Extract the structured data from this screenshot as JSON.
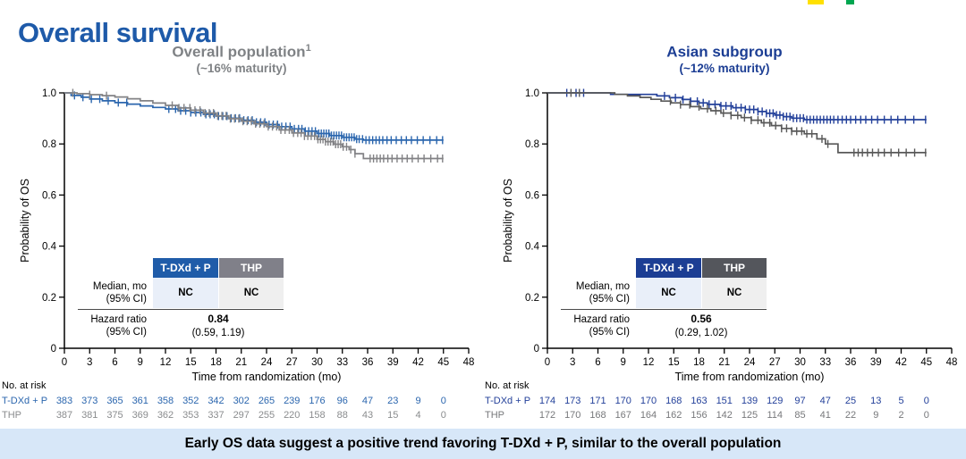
{
  "title": "Overall survival",
  "colors": {
    "main_title": "#1E5AA9",
    "banner_bg": "#D7E7F8",
    "logo_yellow": "#FFE000",
    "logo_green": "#00A650"
  },
  "banner": {
    "text": "Early OS data suggest a positive trend favoring T-DXd + P, similar to the overall population"
  },
  "chart_data": [
    {
      "type": "line",
      "subtype": "kaplan-meier-step",
      "title": "Overall population",
      "title_sup": "1",
      "subtitle": "(~16% maturity)",
      "title_color": "#7F8285",
      "xlabel": "Time from randomization (mo)",
      "ylabel": "Probability of OS",
      "xlim": [
        0,
        48
      ],
      "ylim": [
        0,
        1.0
      ],
      "xticks": [
        0,
        3,
        6,
        9,
        12,
        15,
        18,
        21,
        24,
        27,
        30,
        33,
        36,
        39,
        42,
        45,
        48
      ],
      "yticks": [
        0,
        0.2,
        0.4,
        0.6,
        0.8,
        1.0
      ],
      "grid": false,
      "series": [
        {
          "name": "T-DXd + P",
          "color": "#2B66AE",
          "steps": [
            [
              0,
              1.0
            ],
            [
              0.8,
              0.99
            ],
            [
              2,
              0.983
            ],
            [
              3,
              0.976
            ],
            [
              4.5,
              0.969
            ],
            [
              6,
              0.962
            ],
            [
              7.5,
              0.956
            ],
            [
              9,
              0.949
            ],
            [
              10.5,
              0.943
            ],
            [
              12,
              0.937
            ],
            [
              13.5,
              0.93
            ],
            [
              15,
              0.923
            ],
            [
              16.5,
              0.916
            ],
            [
              18,
              0.909
            ],
            [
              19.5,
              0.901
            ],
            [
              21,
              0.893
            ],
            [
              22.5,
              0.885
            ],
            [
              24,
              0.876
            ],
            [
              25.5,
              0.868
            ],
            [
              27,
              0.859
            ],
            [
              28.5,
              0.85
            ],
            [
              30,
              0.841
            ],
            [
              31.5,
              0.833
            ],
            [
              33,
              0.826
            ],
            [
              34.5,
              0.819
            ],
            [
              35.5,
              0.815
            ],
            [
              45,
              0.815
            ]
          ],
          "censor_times": [
            1.2,
            2.2,
            3.2,
            4.2,
            5.2,
            6.4,
            7.4,
            12.4,
            13.2,
            13.8,
            14.4,
            15.0,
            15.6,
            16.2,
            16.8,
            17.3,
            17.8,
            18.3,
            18.8,
            19.3,
            19.8,
            20.3,
            20.8,
            21.3,
            21.8,
            22.3,
            22.8,
            23.3,
            23.8,
            24.3,
            24.8,
            25.3,
            25.8,
            26.3,
            26.8,
            27.3,
            27.8,
            28.2,
            28.6,
            29.0,
            29.4,
            29.8,
            30.2,
            30.5,
            30.8,
            31.1,
            31.4,
            31.7,
            32.0,
            32.3,
            32.6,
            32.9,
            33.2,
            33.5,
            33.8,
            34.1,
            34.4,
            34.7,
            35.0,
            35.4,
            35.8,
            36.2,
            36.6,
            37.0,
            37.4,
            37.8,
            38.3,
            38.8,
            39.4,
            40.0,
            40.6,
            41.2,
            41.9,
            42.6,
            43.4,
            44.2,
            44.9
          ]
        },
        {
          "name": "THP",
          "color": "#828285",
          "steps": [
            [
              0,
              1.0
            ],
            [
              1.5,
              0.997
            ],
            [
              3,
              0.993
            ],
            [
              4.5,
              0.989
            ],
            [
              6,
              0.984
            ],
            [
              7.5,
              0.977
            ],
            [
              9,
              0.969
            ],
            [
              10.5,
              0.96
            ],
            [
              12,
              0.951
            ],
            [
              13.5,
              0.941
            ],
            [
              15,
              0.932
            ],
            [
              16.5,
              0.921
            ],
            [
              18,
              0.91
            ],
            [
              19.5,
              0.899
            ],
            [
              21,
              0.889
            ],
            [
              22.5,
              0.879
            ],
            [
              24,
              0.868
            ],
            [
              25.5,
              0.855
            ],
            [
              27,
              0.843
            ],
            [
              28.5,
              0.831
            ],
            [
              30,
              0.818
            ],
            [
              31,
              0.809
            ],
            [
              32,
              0.799
            ],
            [
              33,
              0.789
            ],
            [
              33.8,
              0.778
            ],
            [
              34.5,
              0.762
            ],
            [
              35.5,
              0.743
            ],
            [
              45,
              0.743
            ]
          ],
          "censor_times": [
            1.0,
            3.0,
            5.0,
            12.8,
            13.6,
            14.2,
            14.9,
            15.5,
            16.1,
            16.7,
            17.2,
            17.7,
            18.2,
            18.7,
            19.2,
            19.7,
            20.2,
            20.7,
            21.2,
            21.7,
            22.2,
            22.7,
            23.2,
            23.7,
            24.2,
            24.7,
            25.2,
            25.7,
            26.2,
            26.7,
            27.2,
            27.7,
            28.1,
            28.5,
            28.9,
            29.3,
            29.7,
            30.1,
            30.4,
            30.7,
            31.0,
            31.3,
            31.6,
            31.9,
            32.2,
            32.5,
            32.8,
            33.1,
            33.5,
            34.0,
            34.5,
            36.3,
            36.7,
            37.1,
            37.5,
            37.9,
            38.4,
            38.9,
            39.5,
            40.1,
            40.7,
            41.3,
            42.0,
            42.7,
            43.5,
            44.3,
            44.9
          ]
        }
      ],
      "stats": {
        "row1_label1": "Median, mo",
        "row1_label2": "(95% CI)",
        "row1_arm1": "NC",
        "row1_arm2": "NC",
        "row2_label1": "Hazard ratio",
        "row2_label2": "(95% CI)",
        "hr": "0.84",
        "hr_ci": "(0.59, 1.19)",
        "arm1_header_bg": "#1F5CA9",
        "arm2_header_bg": "#808089",
        "arm1_cell_bg": "#E9EFF9",
        "arm2_cell_bg": "#EFEFEF"
      },
      "at_risk": {
        "label": "No. at risk",
        "rows": [
          {
            "name": "T-DXd + P",
            "color": "#2B66AE",
            "values": [
              383,
              373,
              365,
              361,
              358,
              352,
              342,
              302,
              265,
              239,
              176,
              96,
              47,
              23,
              9,
              0
            ]
          },
          {
            "name": "THP",
            "color": "#8A8C8E",
            "values": [
              387,
              381,
              375,
              369,
              362,
              353,
              337,
              297,
              255,
              220,
              158,
              88,
              43,
              15,
              4,
              0
            ]
          }
        ]
      }
    },
    {
      "type": "line",
      "subtype": "kaplan-meier-step",
      "title": "Asian subgroup",
      "title_sup": "",
      "subtitle": "(~12% maturity)",
      "title_color": "#1C3E94",
      "xlabel": "Time from randomization (mo)",
      "ylabel": "Probability of OS",
      "xlim": [
        0,
        48
      ],
      "ylim": [
        0,
        1.0
      ],
      "xticks": [
        0,
        3,
        6,
        9,
        12,
        15,
        18,
        21,
        24,
        27,
        30,
        33,
        36,
        39,
        42,
        45,
        48
      ],
      "yticks": [
        0,
        0.2,
        0.4,
        0.6,
        0.8,
        1.0
      ],
      "grid": false,
      "series": [
        {
          "name": "T-DXd + P",
          "color": "#23409A",
          "steps": [
            [
              0,
              1.0
            ],
            [
              7.5,
              0.994
            ],
            [
              13,
              0.988
            ],
            [
              14.5,
              0.981
            ],
            [
              16,
              0.974
            ],
            [
              17,
              0.967
            ],
            [
              18,
              0.961
            ],
            [
              19,
              0.955
            ],
            [
              20.5,
              0.949
            ],
            [
              22,
              0.942
            ],
            [
              23.5,
              0.935
            ],
            [
              25,
              0.927
            ],
            [
              26,
              0.92
            ],
            [
              27,
              0.913
            ],
            [
              28,
              0.907
            ],
            [
              29,
              0.901
            ],
            [
              30.5,
              0.895
            ],
            [
              45,
              0.895
            ]
          ],
          "censor_times": [
            2.3,
            3.4,
            4.3,
            13.9,
            15.2,
            16.1,
            17.0,
            17.8,
            18.5,
            19.2,
            19.9,
            20.6,
            21.2,
            21.8,
            22.4,
            23.0,
            23.5,
            24.0,
            24.5,
            25.0,
            25.5,
            26.0,
            26.4,
            26.8,
            27.2,
            27.6,
            28.0,
            28.4,
            28.8,
            29.2,
            29.6,
            30.0,
            30.4,
            30.8,
            31.2,
            31.6,
            32.0,
            32.4,
            32.8,
            33.2,
            33.6,
            34.0,
            34.5,
            35.0,
            35.5,
            36.0,
            36.6,
            37.2,
            37.8,
            38.5,
            39.2,
            40.0,
            40.8,
            41.6,
            42.5,
            43.5,
            44.9
          ]
        },
        {
          "name": "THP",
          "color": "#595959",
          "steps": [
            [
              0,
              1.0
            ],
            [
              8,
              0.994
            ],
            [
              9.5,
              0.988
            ],
            [
              11,
              0.982
            ],
            [
              12.3,
              0.975
            ],
            [
              13.5,
              0.968
            ],
            [
              14.7,
              0.961
            ],
            [
              15.8,
              0.954
            ],
            [
              17,
              0.946
            ],
            [
              18.2,
              0.938
            ],
            [
              19.4,
              0.93
            ],
            [
              20.6,
              0.921
            ],
            [
              21.8,
              0.912
            ],
            [
              23,
              0.903
            ],
            [
              24.2,
              0.893
            ],
            [
              25.4,
              0.883
            ],
            [
              26.6,
              0.872
            ],
            [
              27.8,
              0.861
            ],
            [
              29,
              0.85
            ],
            [
              30.5,
              0.84
            ],
            [
              32,
              0.82
            ],
            [
              33,
              0.8
            ],
            [
              34.5,
              0.766
            ],
            [
              45,
              0.766
            ]
          ],
          "censor_times": [
            2.8,
            3.8,
            14.6,
            15.8,
            16.9,
            18.0,
            19.0,
            20.0,
            20.9,
            21.8,
            22.6,
            23.4,
            24.2,
            25.0,
            25.7,
            26.4,
            27.1,
            27.8,
            28.4,
            29.0,
            29.6,
            30.2,
            30.8,
            31.4,
            32.6,
            33.3,
            36.4,
            36.9,
            37.4,
            38.0,
            38.6,
            39.3,
            40.0,
            40.8,
            41.7,
            42.6,
            43.6,
            44.9
          ]
        }
      ],
      "stats": {
        "row1_label1": "Median, mo",
        "row1_label2": "(95% CI)",
        "row1_arm1": "NC",
        "row1_arm2": "NC",
        "row2_label1": "Hazard ratio",
        "row2_label2": "(95% CI)",
        "hr": "0.56",
        "hr_ci": "(0.29, 1.02)",
        "arm1_header_bg": "#1C3E94",
        "arm2_header_bg": "#54565C",
        "arm1_cell_bg": "#E9EFF9",
        "arm2_cell_bg": "#EFEFEF"
      },
      "at_risk": {
        "label": "No. at risk",
        "rows": [
          {
            "name": "T-DXd + P",
            "color": "#23409A",
            "values": [
              174,
              173,
              171,
              170,
              170,
              168,
              163,
              151,
              139,
              129,
              97,
              47,
              25,
              13,
              5,
              0
            ]
          },
          {
            "name": "THP",
            "color": "#77787B",
            "values": [
              172,
              170,
              168,
              167,
              164,
              162,
              156,
              142,
              125,
              114,
              85,
              41,
              22,
              9,
              2,
              0
            ]
          }
        ]
      }
    }
  ]
}
